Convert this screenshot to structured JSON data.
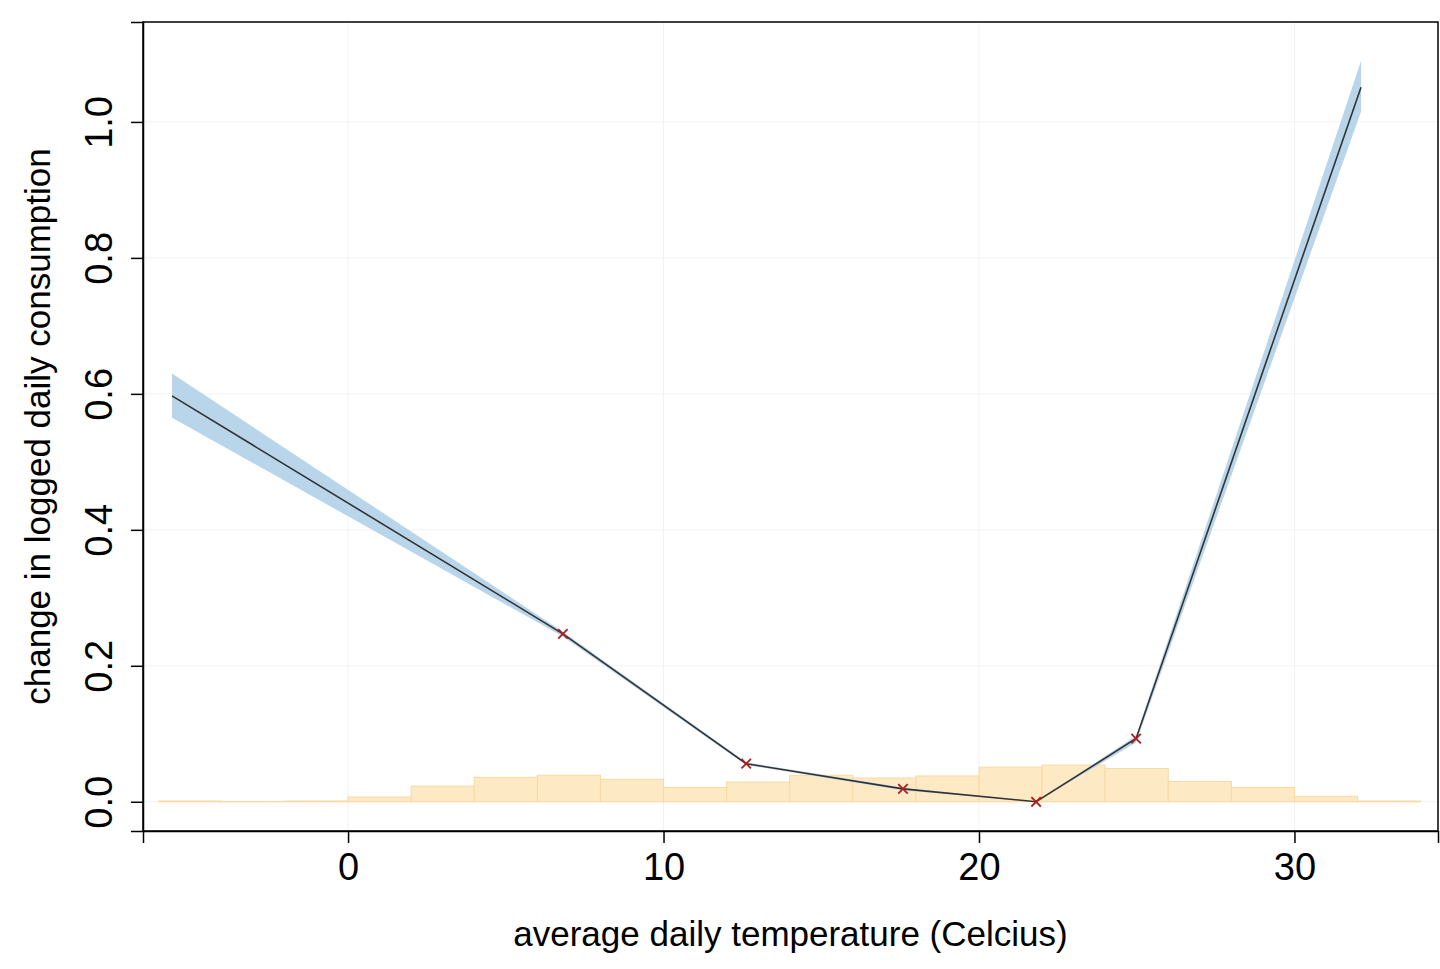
{
  "chart_data": {
    "type": "line",
    "x_label": "average daily temperature (Celcius)",
    "y_label": "change in logged daily consumption",
    "xlim": [
      -6.5,
      34.55
    ],
    "ylim": [
      -0.043,
      1.147
    ],
    "xticks": [
      0,
      10,
      20,
      30
    ],
    "yticks": [
      {
        "value": 0,
        "label": "0.0"
      },
      0.2,
      0.4,
      0.6,
      0.8,
      {
        "value": 1,
        "label": "1.0"
      }
    ],
    "grid": true,
    "series": [
      {
        "type": "histogram",
        "color": "#fde9c4",
        "bins": [
          -6,
          -4,
          -2,
          0,
          2,
          4,
          6,
          8,
          10,
          12,
          14,
          16,
          18,
          20,
          22,
          24,
          26,
          28,
          30,
          32,
          34
        ],
        "values": [
          0.001,
          0.0005,
          0.001,
          0.007,
          0.023,
          0.036,
          0.039,
          0.033,
          0.021,
          0.029,
          0.039,
          0.035,
          0.038,
          0.051,
          0.054,
          0.049,
          0.03,
          0.021,
          0.008,
          0.001
        ]
      },
      {
        "type": "line",
        "color": "#333333",
        "x": [
          -5.58,
          6.81,
          12.62,
          17.59,
          21.81,
          24.98,
          32.11
        ],
        "values": [
          0.597,
          0.247,
          0.056,
          0.019,
          0.0,
          0.093,
          1.051
        ],
        "lower": [
          0.565,
          0.243,
          0.054,
          0.017,
          0.0,
          0.087,
          1.015
        ],
        "upper": [
          0.63,
          0.25,
          0.058,
          0.021,
          0.0,
          0.097,
          1.09
        ]
      },
      {
        "type": "scatter",
        "marker": "x",
        "color": "#b01e1e",
        "x": [
          6.81,
          12.62,
          17.59,
          21.81,
          24.98
        ],
        "values": [
          0.247,
          0.056,
          0.019,
          0.0,
          0.093
        ]
      }
    ]
  }
}
